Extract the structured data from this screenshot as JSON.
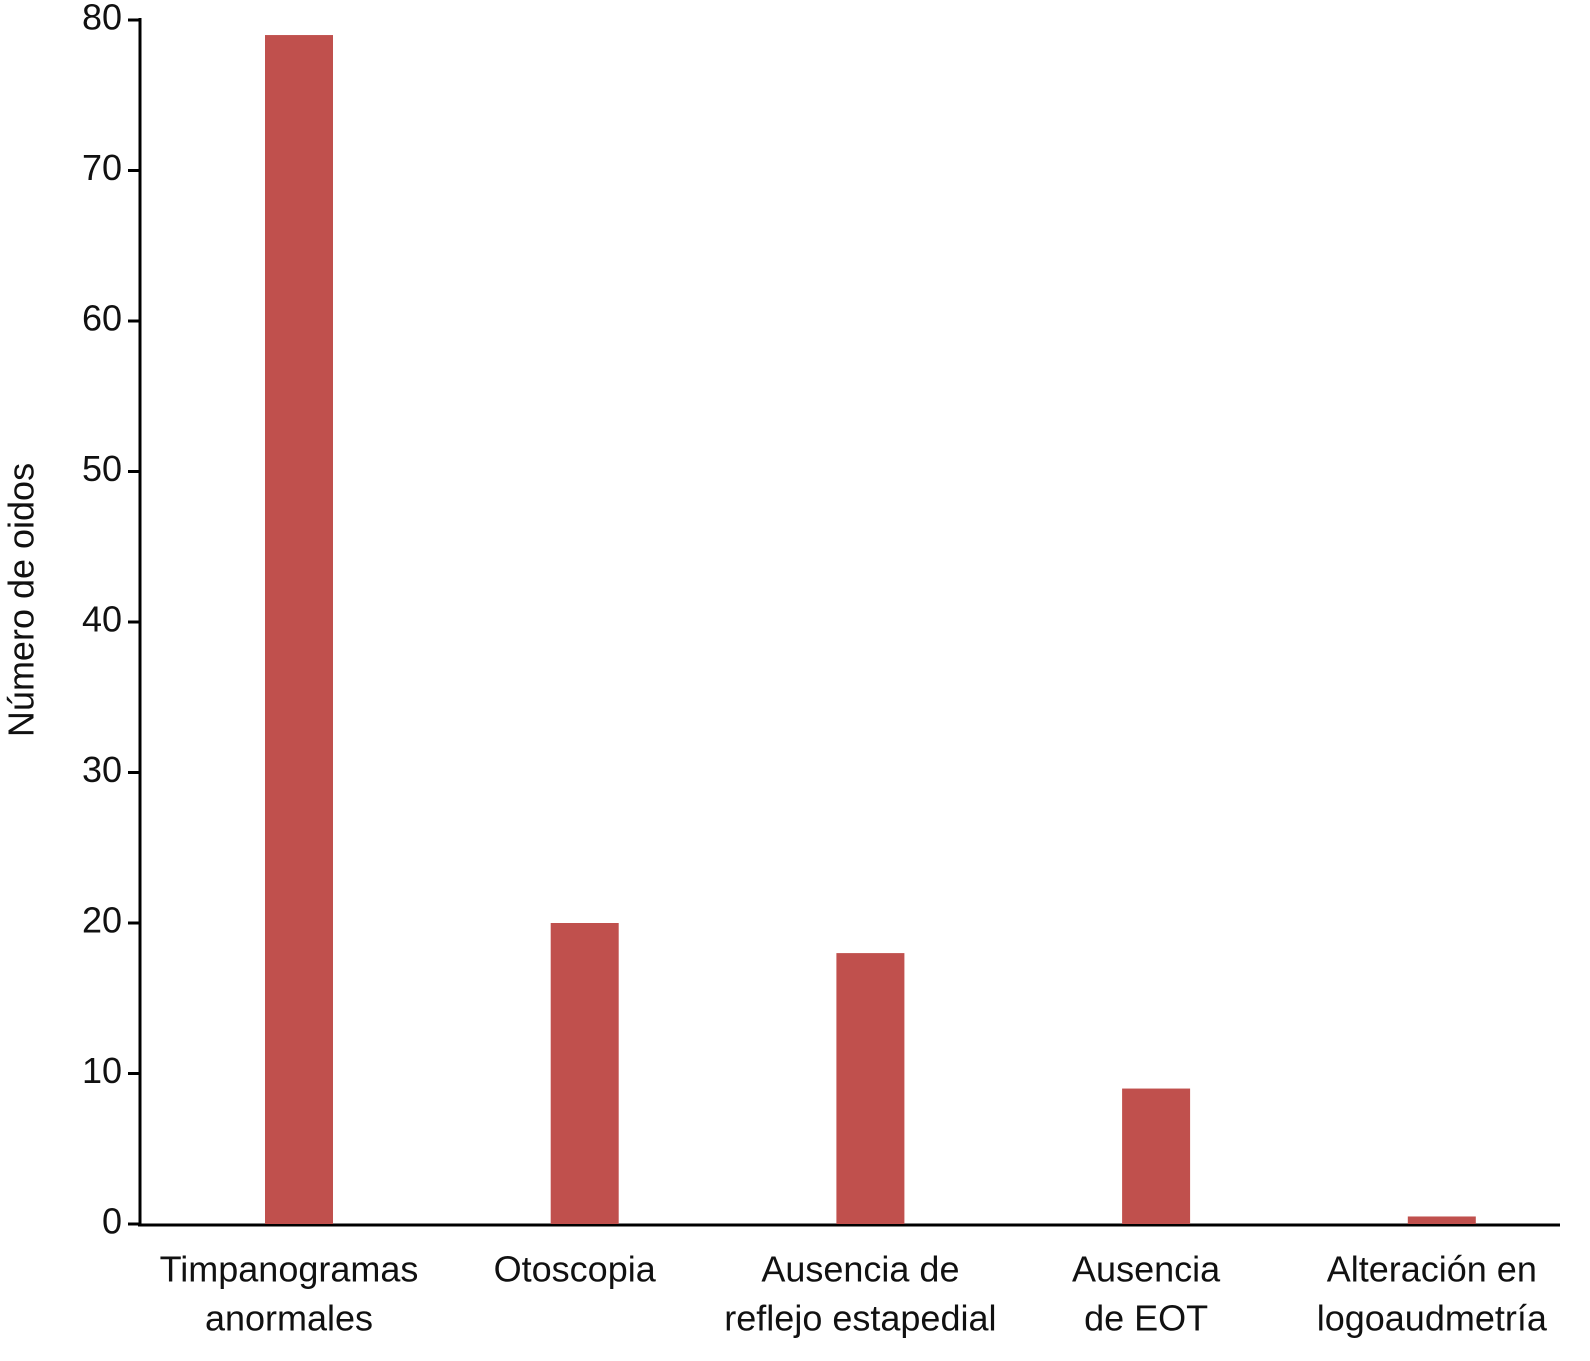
{
  "chart_data": {
    "type": "bar",
    "y_label": "Número de oidos",
    "categories": [
      [
        "Timpanogramas",
        "anormales"
      ],
      [
        "Otoscopia"
      ],
      [
        "Ausencia de",
        "reflejo estapedial"
      ],
      [
        "Ausencia",
        "de EOT"
      ],
      [
        "Alteración en",
        "logoaudmetría"
      ]
    ],
    "values": [
      79,
      20,
      18,
      9,
      0.5
    ],
    "color": "#c0504d",
    "ylim": [
      0,
      80
    ],
    "yticks": [
      0,
      10,
      20,
      30,
      40,
      50,
      60,
      70,
      80
    ],
    "grid": false
  }
}
